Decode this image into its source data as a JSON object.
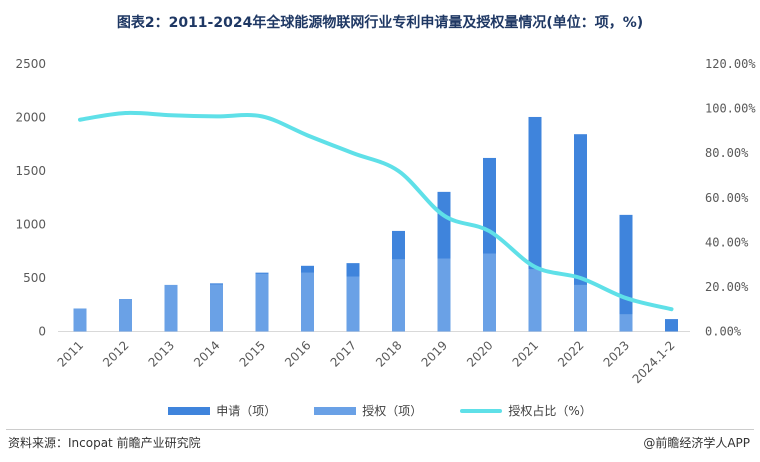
{
  "title": "图表2：2011-2024年全球能源物联网行业专利申请量及授权量情况(单位：项，%)",
  "footer": {
    "source": "资料来源：Incopat 前瞻产业研究院",
    "brand": "@前瞻经济学人APP"
  },
  "colors": {
    "apply": "#3f84dc",
    "grant": "#6aa1e6",
    "ratio": "#5fe0e8"
  },
  "chart_data": {
    "type": "bar+line",
    "categories": [
      "2011",
      "2012",
      "2013",
      "2014",
      "2015",
      "2016",
      "2017",
      "2018",
      "2019",
      "2020",
      "2021",
      "2022",
      "2023",
      "2024.1-2"
    ],
    "series": [
      {
        "name": "申请（项）",
        "type": "bar",
        "axis": "left",
        "values": [
          215,
          303,
          435,
          450,
          550,
          614,
          639,
          940,
          1305,
          1622,
          2005,
          1844,
          1090,
          116
        ]
      },
      {
        "name": "授权（项）",
        "type": "bar",
        "axis": "left",
        "values": [
          215,
          303,
          435,
          440,
          540,
          551,
          514,
          676,
          682,
          729,
          583,
          436,
          162,
          0
        ]
      },
      {
        "name": "授权占比（%）",
        "type": "line",
        "axis": "right",
        "values": [
          95,
          98,
          97,
          96.5,
          96.5,
          88,
          80,
          72,
          52,
          45,
          29,
          24,
          15,
          10
        ]
      }
    ],
    "ylim_left": [
      0,
      2500
    ],
    "yticks_left": [
      "0",
      "500",
      "1000",
      "1500",
      "2000",
      "2500"
    ],
    "ylim_right": [
      0,
      120
    ],
    "yticks_right": [
      "0.00%",
      "20.00%",
      "40.00%",
      "60.00%",
      "80.00%",
      "100.00%",
      "120.00%"
    ],
    "grid": false,
    "legend": "bottom"
  }
}
